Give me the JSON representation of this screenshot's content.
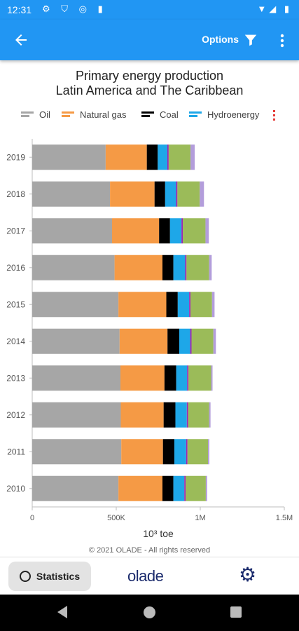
{
  "status_bar": {
    "time": "12:31",
    "left_icons": "⚙ ⛉ ◎ ▮",
    "right_icons": "▼◢ ▮"
  },
  "app_bar": {
    "back_icon": "arrow-back-icon",
    "options_label": "Options",
    "filter_icon": "filter-icon",
    "menu_icon": "more-vert-icon"
  },
  "chart_title_line1": "Primary energy production",
  "chart_title_line2": "Latin America and The Caribbean",
  "chart_data": {
    "type": "bar",
    "orientation": "horizontal",
    "stacked": true,
    "title": "Primary energy production Latin America and The Caribbean",
    "xlabel": "10³ toe",
    "ylabel": "",
    "xlim": [
      0,
      1500000
    ],
    "x_ticks": [
      "0",
      "500K",
      "1M",
      "1.5M"
    ],
    "x_tick_values": [
      0,
      500000,
      1000000,
      1500000
    ],
    "categories": [
      "2019",
      "2018",
      "2017",
      "2016",
      "2015",
      "2014",
      "2013",
      "2012",
      "2011",
      "2010"
    ],
    "series": [
      {
        "name": "Oil",
        "color": "#a6a6a6",
        "values": [
          437000,
          463000,
          475000,
          490000,
          513000,
          520000,
          525000,
          527000,
          530000,
          513000
        ]
      },
      {
        "name": "Natural gas",
        "color": "#f59a45",
        "values": [
          245000,
          265000,
          280000,
          285000,
          285000,
          285000,
          262000,
          255000,
          248000,
          262000
        ]
      },
      {
        "name": "Coal",
        "color": "#000000",
        "values": [
          65000,
          63000,
          65000,
          65000,
          68000,
          70000,
          70000,
          70000,
          68000,
          65000
        ]
      },
      {
        "name": "Hydroenergy",
        "color": "#1ea7e8",
        "values": [
          57000,
          65000,
          68000,
          70000,
          68000,
          65000,
          65000,
          68000,
          70000,
          65000
        ]
      },
      {
        "name": "",
        "color": "#9c27b0",
        "values": [
          8000,
          8000,
          8000,
          8000,
          8000,
          8000,
          8000,
          8000,
          8000,
          8000
        ]
      },
      {
        "name": "",
        "color": "#9bbb59",
        "values": [
          130000,
          133000,
          135000,
          135000,
          128000,
          130000,
          135000,
          125000,
          122000,
          120000
        ]
      },
      {
        "name": "",
        "color": "#b39ddb",
        "values": [
          25000,
          25000,
          20000,
          15000,
          15000,
          15000,
          8000,
          8000,
          8000,
          8000
        ]
      }
    ],
    "legend_position": "top",
    "grid": false
  },
  "legend": {
    "items": [
      {
        "label": "Oil",
        "color": "#a6a6a6"
      },
      {
        "label": "Natural gas",
        "color": "#f59a45"
      },
      {
        "label": "Coal",
        "color": "#000000"
      },
      {
        "label": "Hydroenergy",
        "color": "#1ea7e8"
      }
    ],
    "more_indicator_color": "#e53935"
  },
  "footer": {
    "copyright": "© 2021 OLADE - All rights reserved"
  },
  "bottom_nav": {
    "statistics_label": "Statistics",
    "statistics_icon": "statistics-icon",
    "logo_text": "olade",
    "settings_icon": "settings-icon",
    "settings_glyph": "⚙"
  }
}
